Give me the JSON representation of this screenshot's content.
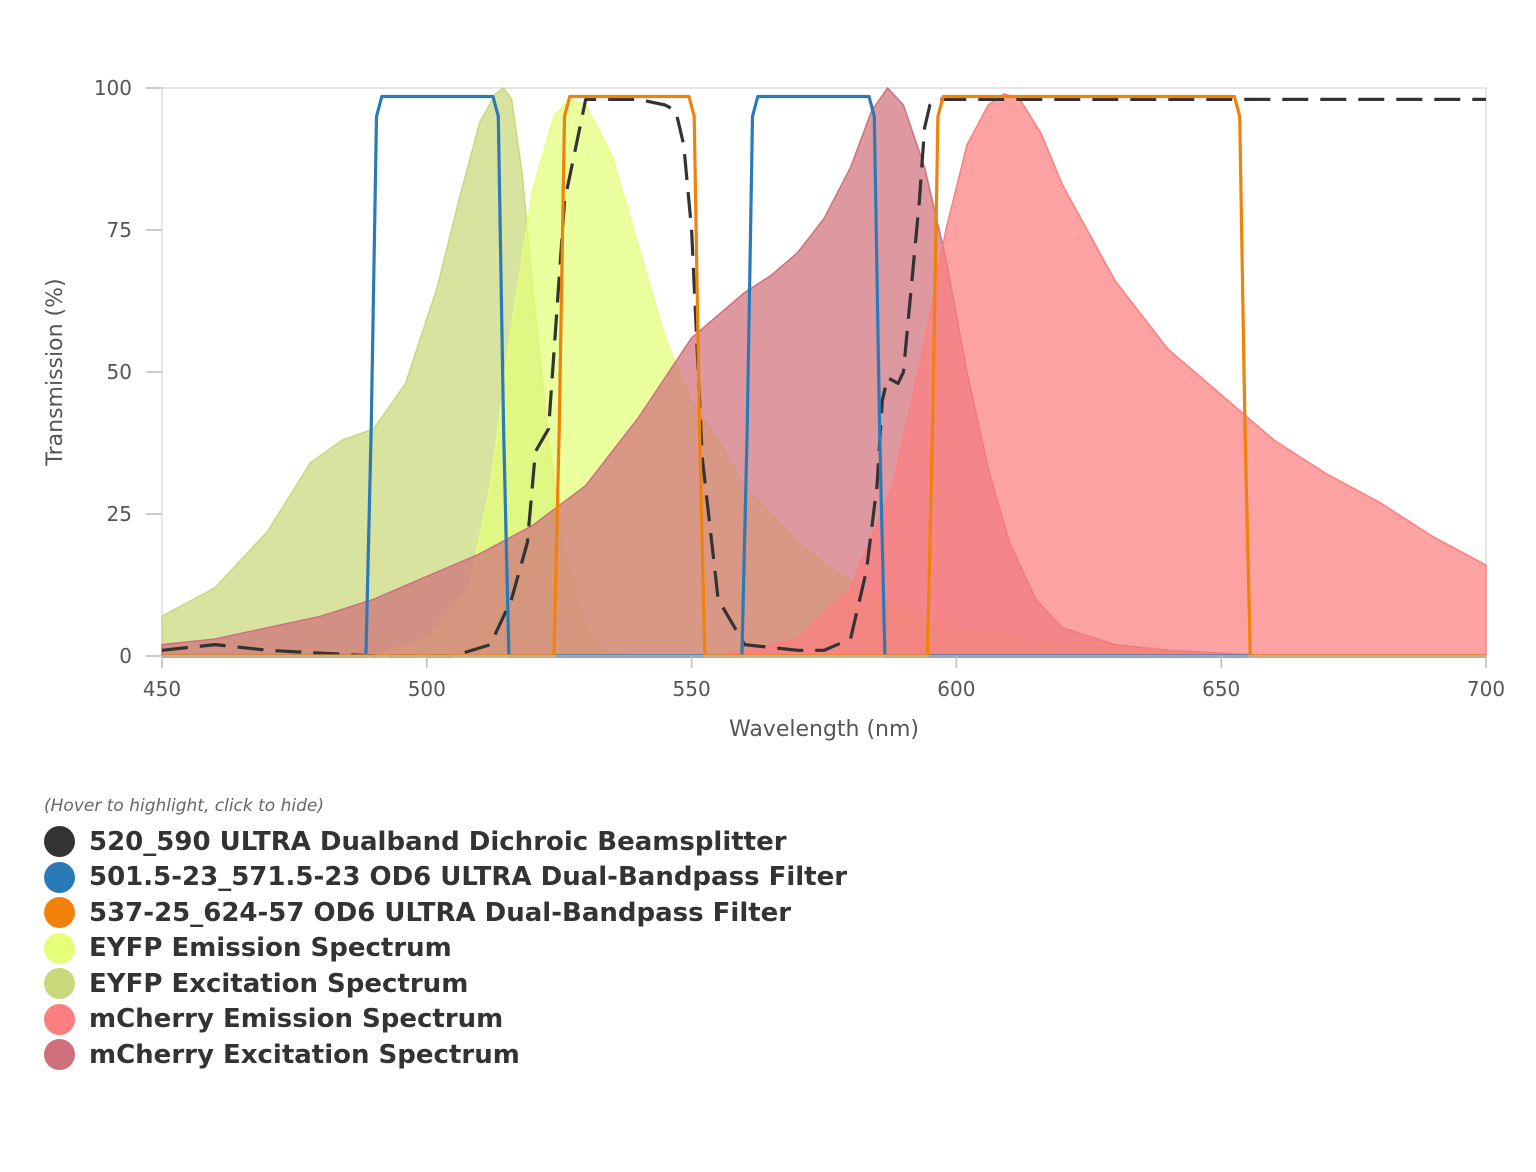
{
  "chart_data": {
    "type": "area",
    "title": "",
    "xlabel": "Wavelength (nm)",
    "ylabel": "Transmission (%)",
    "xlim": [
      450,
      700
    ],
    "ylim": [
      0,
      100
    ],
    "xticks": [
      450,
      500,
      550,
      600,
      650,
      700
    ],
    "yticks": [
      0,
      25,
      50,
      75,
      100
    ],
    "legend_hint": "(Hover to highlight, click to hide)",
    "series": [
      {
        "name": "520_590 ULTRA Dualband Dichroic Beamsplitter",
        "color": "#333333",
        "style": "line-dashed",
        "x": [
          450,
          460,
          470,
          490,
          505,
          512,
          516,
          519,
          520.5,
          523,
          526,
          530,
          540,
          545,
          547,
          548.5,
          550,
          552,
          555,
          560,
          570,
          575,
          580,
          583,
          585,
          586,
          587,
          589,
          590,
          593,
          594,
          595,
          596,
          600,
          620,
          640,
          660,
          680,
          700
        ],
        "values": [
          1,
          2,
          1,
          0,
          0,
          2,
          10,
          20,
          36,
          40,
          80,
          98,
          98,
          97,
          96,
          90,
          75,
          35,
          10,
          2,
          1,
          1,
          3,
          15,
          30,
          45,
          49,
          48,
          50,
          80,
          93,
          97,
          98,
          98,
          98,
          98,
          98,
          98,
          98
        ]
      },
      {
        "name": "501.5-23_571.5-23 OD6 ULTRA Dual-Bandpass Filter",
        "color": "#2a7ab8",
        "style": "line",
        "x": [
          450,
          488.5,
          489.5,
          490.5,
          491.5,
          500,
          512.5,
          513.5,
          514.5,
          515.5,
          559.5,
          560.5,
          561.5,
          562.5,
          570,
          583.5,
          584.5,
          585.5,
          586.5,
          700
        ],
        "values": [
          0,
          0,
          40,
          95,
          98.5,
          98.5,
          98.5,
          95,
          40,
          0,
          0,
          40,
          95,
          98.5,
          98.5,
          98.5,
          95,
          40,
          0,
          0
        ]
      },
      {
        "name": "537-25_624-57 OD6 ULTRA Dual-Bandpass Filter",
        "color": "#f0820a",
        "style": "line",
        "x": [
          450,
          524,
          525,
          526,
          527,
          538,
          549.5,
          550.5,
          551.5,
          552.5,
          594.5,
          595.5,
          596.5,
          597.5,
          625,
          652.5,
          653.5,
          654.5,
          655.5,
          700
        ],
        "values": [
          0,
          0,
          40,
          95,
          98.5,
          98.5,
          98.5,
          95,
          40,
          0,
          0,
          40,
          95,
          98.5,
          98.5,
          98.5,
          95,
          40,
          0,
          0
        ]
      },
      {
        "name": "EYFP Emission Spectrum",
        "color": "#e5ff7a",
        "style": "area",
        "x": [
          490,
          500,
          508,
          512,
          516,
          520,
          524,
          527,
          530,
          535,
          540,
          545,
          550,
          555,
          560,
          570,
          580,
          590,
          600,
          620,
          650
        ],
        "values": [
          0,
          3,
          12,
          30,
          58,
          82,
          95,
          98,
          97,
          88,
          72,
          56,
          45,
          38,
          30,
          20,
          13,
          8,
          5,
          2,
          0
        ]
      },
      {
        "name": "EYFP Excitation Spectrum",
        "color": "#c8d87a",
        "style": "area",
        "x": [
          450,
          460,
          470,
          478,
          484,
          490,
          496,
          502,
          506,
          510,
          513,
          514.5,
          516,
          518,
          520,
          523,
          526,
          530,
          533,
          540
        ],
        "values": [
          7,
          12,
          22,
          34,
          38,
          40,
          48,
          65,
          80,
          94,
          99,
          100,
          98,
          85,
          65,
          38,
          18,
          5,
          1,
          0
        ]
      },
      {
        "name": "mCherry Emission Spectrum",
        "color": "#fc7e7e",
        "style": "area",
        "x": [
          555,
          570,
          580,
          588,
          594,
          598,
          602,
          606,
          609,
          612,
          616,
          620,
          630,
          640,
          650,
          660,
          670,
          680,
          690,
          700
        ],
        "values": [
          0,
          3,
          12,
          30,
          55,
          75,
          90,
          97,
          99,
          98,
          92,
          83,
          66,
          54,
          46,
          38,
          32,
          27,
          21,
          16
        ]
      },
      {
        "name": "mCherry Excitation Spectrum",
        "color": "#d0707c",
        "style": "area",
        "x": [
          450,
          460,
          470,
          480,
          490,
          500,
          510,
          520,
          530,
          540,
          545,
          550,
          555,
          560,
          565,
          570,
          575,
          580,
          584,
          587,
          590,
          594,
          598,
          602,
          606,
          610,
          615,
          620,
          630,
          640,
          660
        ],
        "values": [
          2,
          3,
          5,
          7,
          10,
          14,
          18,
          23,
          30,
          42,
          49,
          56,
          60,
          64,
          67,
          71,
          77,
          86,
          96,
          100,
          97,
          86,
          70,
          50,
          33,
          20,
          10,
          5,
          2,
          1,
          0
        ]
      }
    ]
  }
}
